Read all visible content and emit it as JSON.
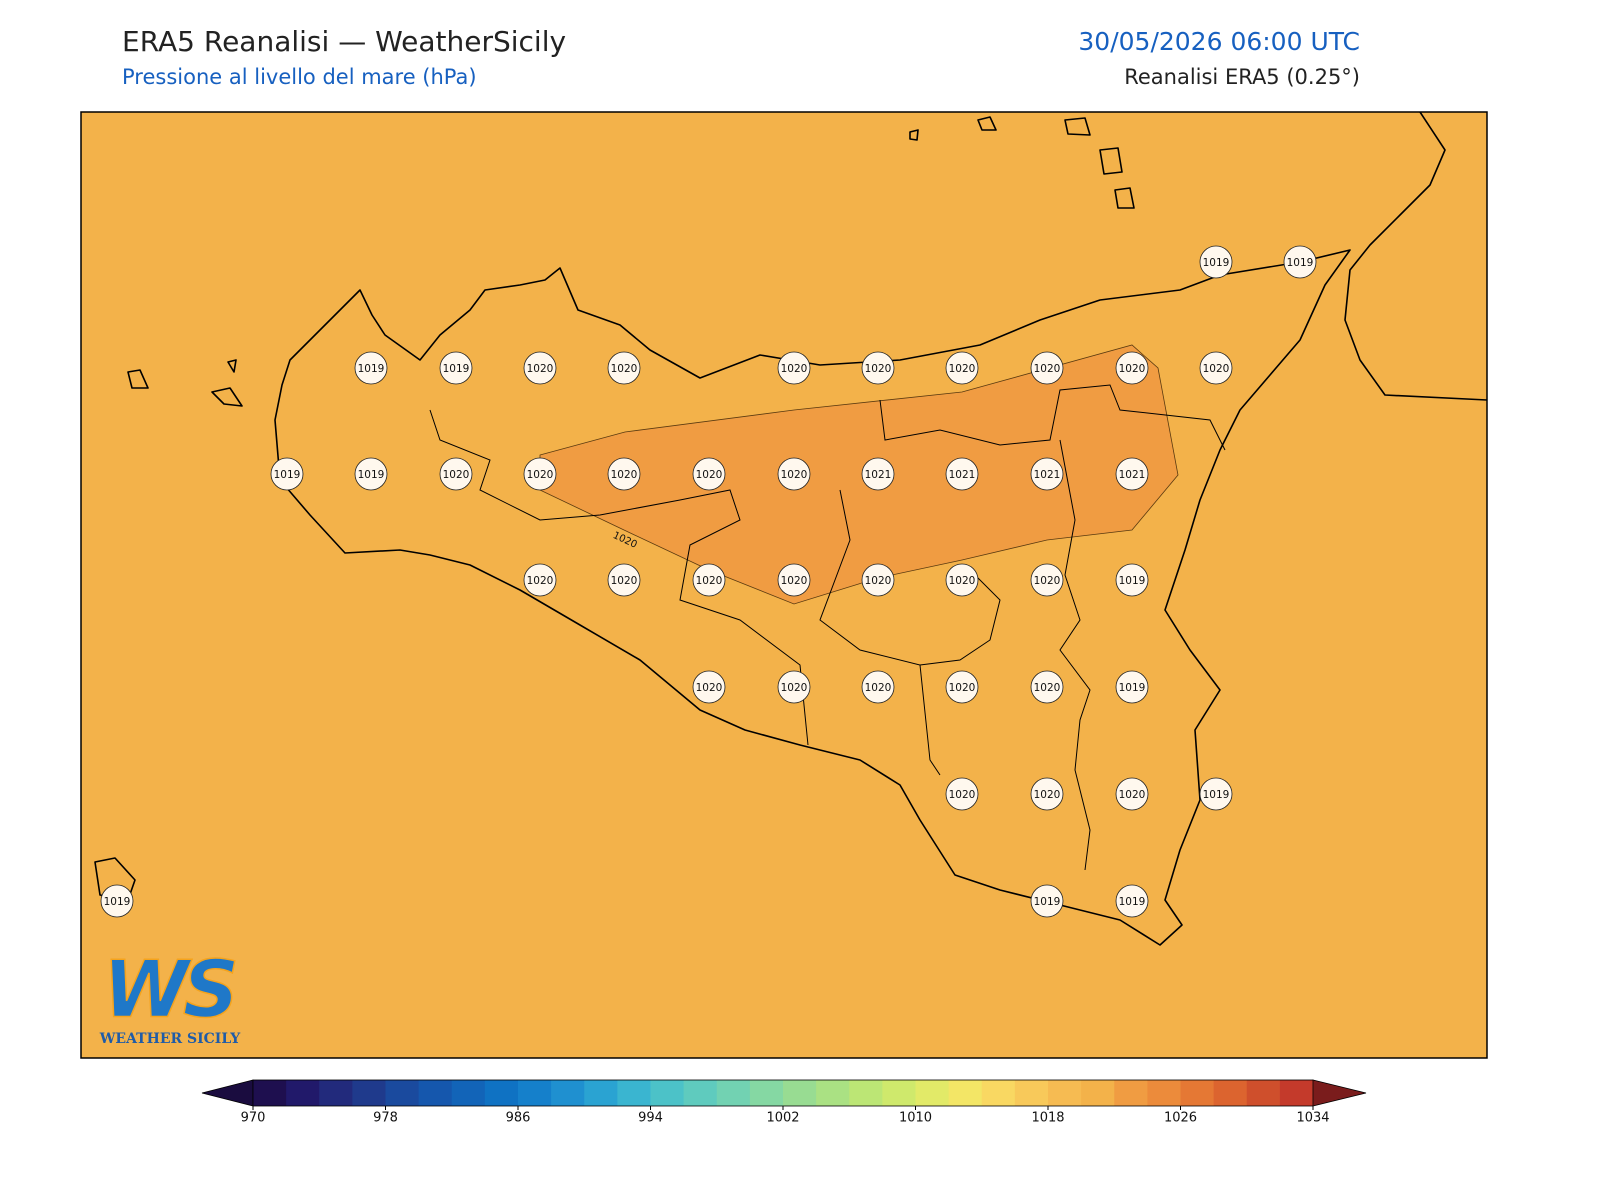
{
  "header": {
    "title": "ERA5 Reanalisi — WeatherSicily",
    "subtitle": "Pressione al livello del mare (hPa)",
    "timestamp": "30/05/2026 06:00 UTC",
    "source": "Reanalisi ERA5 (0.25°)"
  },
  "map": {
    "base_color": "#f3b24a",
    "high_color": "#f09c42",
    "contour_label": 1020,
    "stations": [
      1019,
      1019,
      1019,
      1019,
      1020,
      1020,
      1020,
      1020,
      1020,
      1020,
      1020,
      1020,
      1019,
      1019,
      1020,
      1020,
      1020,
      1020,
      1020,
      1021,
      1021,
      1021,
      1021,
      1020,
      1020,
      1020,
      1020,
      1020,
      1020,
      1020,
      1019,
      1020,
      1020,
      1020,
      1020,
      1020,
      1019,
      1020,
      1020,
      1020,
      1019,
      1019,
      1019,
      1019
    ]
  },
  "colorbar": {
    "ticks": [
      970,
      978,
      986,
      994,
      1002,
      1010,
      1018,
      1026,
      1034
    ],
    "under_color": "#1a0c3f",
    "over_color": "#7a1c1c",
    "colors": [
      "#1e0f4f",
      "#21196a",
      "#222a7c",
      "#1f3a8c",
      "#1a4a9e",
      "#1557ad",
      "#1264b8",
      "#0f72c3",
      "#1580cb",
      "#1f90d0",
      "#2aa3d2",
      "#3ab5d0",
      "#4cc2c8",
      "#5fcbbe",
      "#72d2b2",
      "#85d8a3",
      "#98dc92",
      "#aae183",
      "#bce675",
      "#cfe96c",
      "#e2ea68",
      "#f3e666",
      "#f9d862",
      "#f8c95a",
      "#f6bb52",
      "#f3b24a",
      "#f09c42",
      "#ec8b3b",
      "#e57834",
      "#dc642f",
      "#cf4f2c",
      "#c43a2b"
    ]
  },
  "logo": {
    "mark": "WS",
    "name": "WEATHER SICILY"
  }
}
